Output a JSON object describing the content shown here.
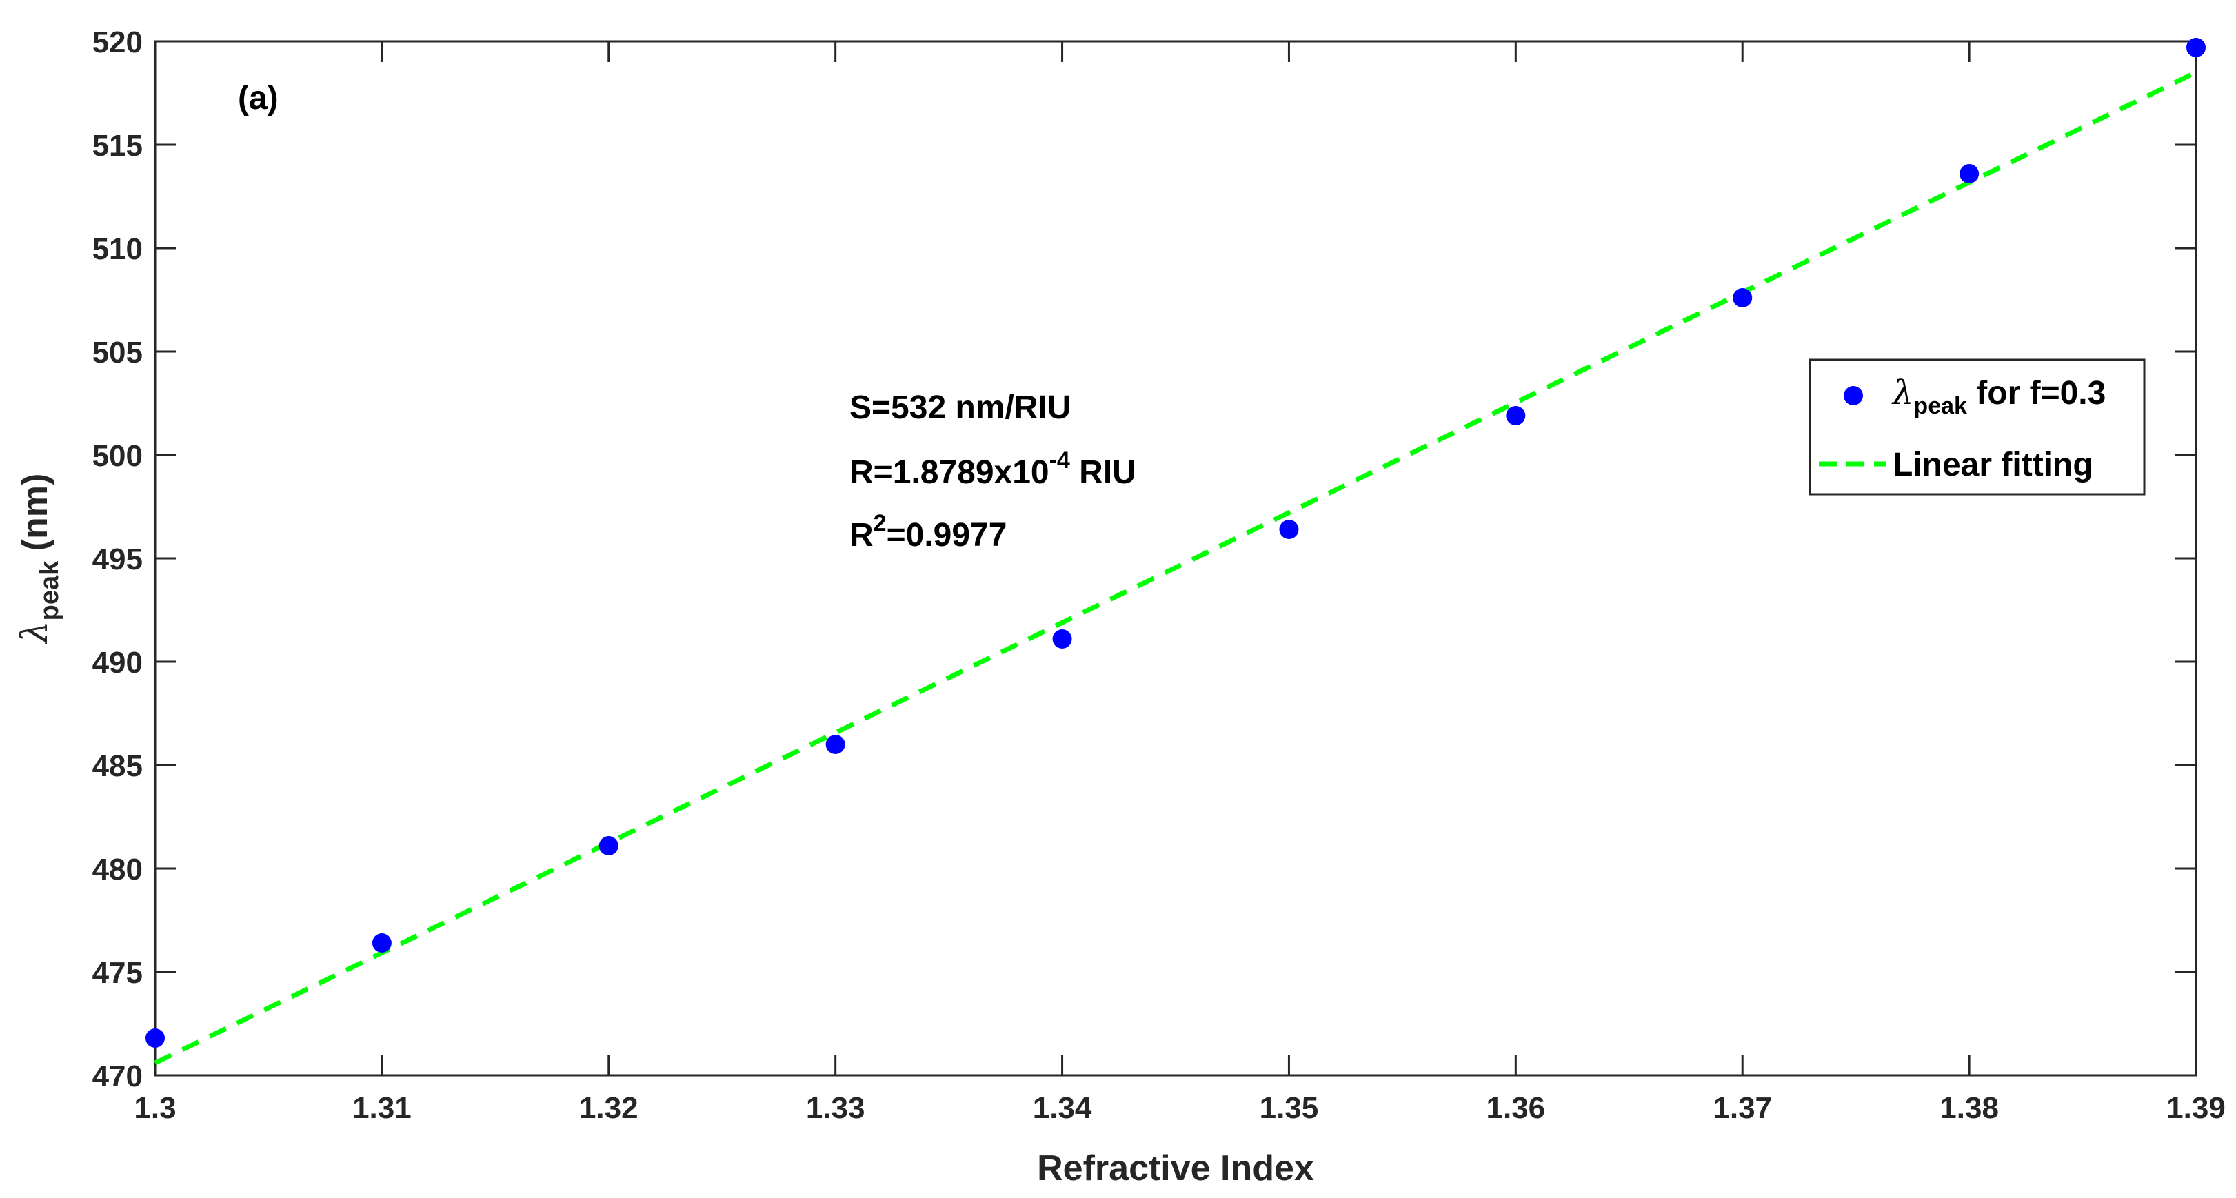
{
  "chart_data": {
    "type": "scatter",
    "panel_label": "(a)",
    "xlabel": "Refractive Index",
    "ylabel": {
      "main": "λ",
      "sub": "peak",
      "unit": " (nm)"
    },
    "xlim": [
      1.3,
      1.39
    ],
    "ylim": [
      470,
      520
    ],
    "xticks": [
      1.3,
      1.31,
      1.32,
      1.33,
      1.34,
      1.35,
      1.36,
      1.37,
      1.38,
      1.39
    ],
    "xtick_labels": [
      "1.3",
      "1.31",
      "1.32",
      "1.33",
      "1.34",
      "1.35",
      "1.36",
      "1.37",
      "1.38",
      "1.39"
    ],
    "yticks": [
      470,
      475,
      480,
      485,
      490,
      495,
      500,
      505,
      510,
      515,
      520
    ],
    "ytick_labels": [
      "470",
      "475",
      "480",
      "485",
      "490",
      "495",
      "500",
      "505",
      "510",
      "515",
      "520"
    ],
    "grid": false,
    "series": [
      {
        "name": "λpeak for f=0.3",
        "kind": "scatter",
        "color": "#0000ff",
        "x": [
          1.3,
          1.31,
          1.32,
          1.33,
          1.34,
          1.35,
          1.36,
          1.37,
          1.38,
          1.39
        ],
        "y": [
          471.8,
          476.4,
          481.1,
          486.0,
          491.1,
          496.4,
          501.9,
          507.6,
          513.6,
          519.7
        ]
      },
      {
        "name": "Linear fitting",
        "kind": "line",
        "style": "dashed",
        "color": "#00ff00",
        "x": [
          1.3,
          1.39
        ],
        "y": [
          470.6,
          518.5
        ]
      }
    ],
    "annotations": [
      {
        "text": "S=532 nm/RIU"
      },
      {
        "text": "R=1.8789x10",
        "sup": "-4",
        "tail": " RIU"
      },
      {
        "text": "R",
        "sup": "2",
        "tail": "=0.9977"
      }
    ],
    "legend": {
      "position": "right",
      "entries": [
        {
          "main": "λ",
          "sub": "peak",
          "tail": " for f=0.3",
          "marker": "dot"
        },
        {
          "main": "Linear fitting",
          "marker": "dashed-line"
        }
      ]
    }
  }
}
